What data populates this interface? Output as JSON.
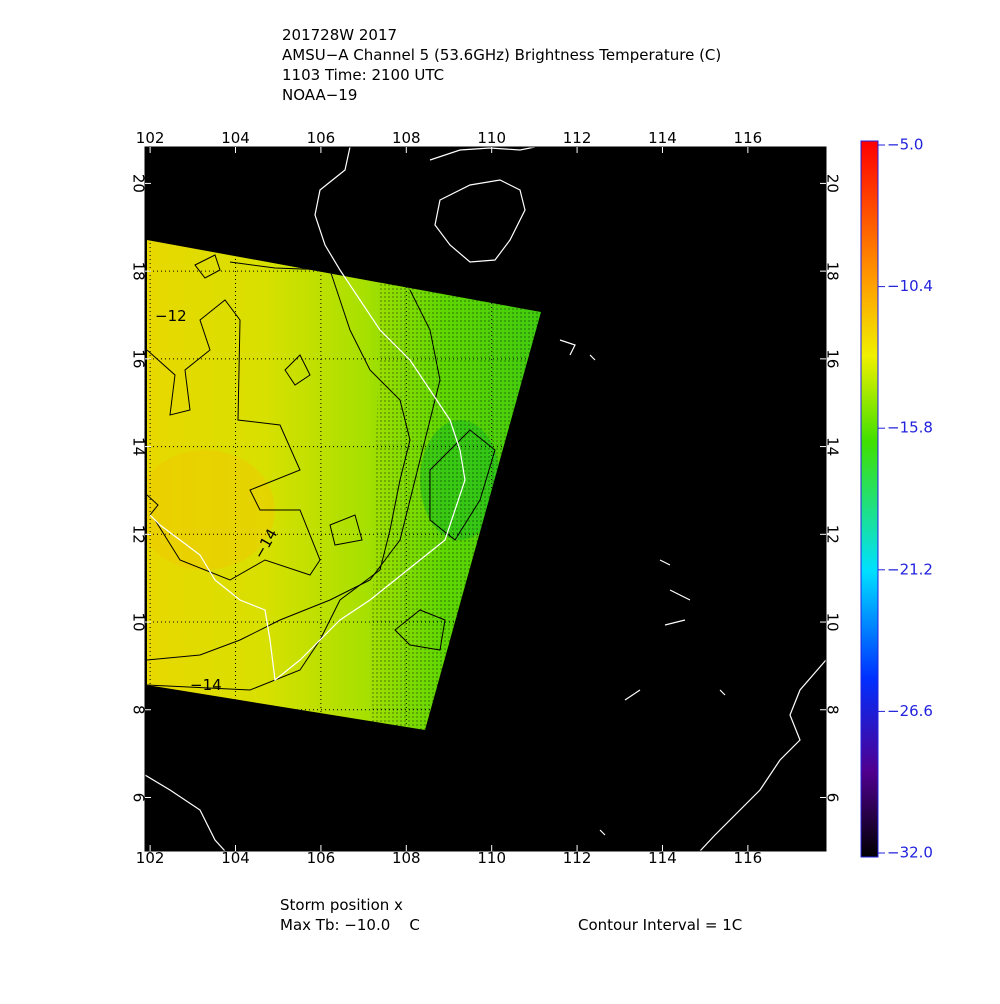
{
  "header": {
    "lines": [
      "201728W 2017",
      "AMSU−A Channel 5 (53.6GHz) Brightness Temperature (C)",
      "1103 Time: 2100 UTC",
      "NOAA−19"
    ]
  },
  "map": {
    "xlim": [
      101.88,
      117.83
    ],
    "ylim": [
      4.78,
      20.83
    ],
    "xticks": [
      102,
      104,
      106,
      108,
      110,
      112,
      114,
      116
    ],
    "yticks": [
      6,
      8,
      10,
      12,
      14,
      16,
      18,
      20
    ],
    "contour_labels": [
      "−12",
      "−14",
      "−14"
    ]
  },
  "colorbar": {
    "lim": [
      -32,
      -5
    ],
    "ticks": [
      {
        "value": -5,
        "label": "−5.0"
      },
      {
        "value": -10.4,
        "label": "−10.4"
      },
      {
        "value": -15.8,
        "label": "−15.8"
      },
      {
        "value": -21.2,
        "label": "−21.2"
      },
      {
        "value": -26.6,
        "label": "−26.6"
      },
      {
        "value": -32,
        "label": "−32.0"
      }
    ]
  },
  "footer": {
    "storm_position": "Storm position x",
    "max_tb": "Max Tb: −10.0    C",
    "contour_interval": "Contour Interval = 1C"
  }
}
